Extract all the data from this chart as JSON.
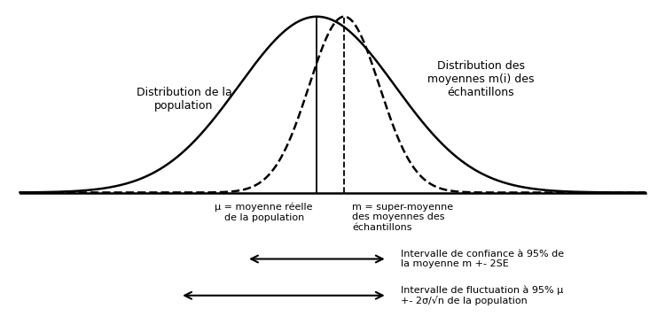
{
  "mu": 0.0,
  "m": 0.35,
  "sigma_pop": 1.0,
  "sigma_sample": 0.45,
  "x_min": -3.8,
  "x_max": 4.2,
  "label_pop": "Distribution de la\npopulation",
  "label_sample": "Distribution des\nmoyennes m(i) des\néchantillons",
  "label_mu": "μ = moyenne réelle\nde la population",
  "label_m": "m = super-moyenne\ndes moyennes des\néchantillons",
  "label_ic": "Intervalle de confiance à 95% de\nla moyenne m +- 2SE",
  "label_if": "Intervalle de fluctuation à 95% μ\n+- 2σ/√n de la population",
  "background_color": "#ffffff",
  "curve_color": "#000000",
  "fontsize_labels": 9,
  "fontsize_annot": 8.5
}
